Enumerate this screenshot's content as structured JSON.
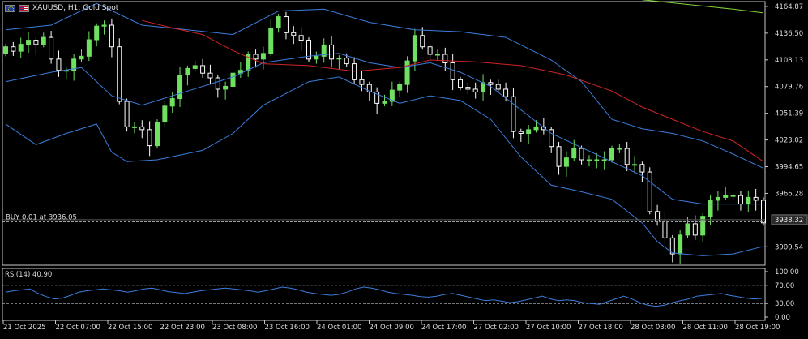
{
  "window": {
    "symbol_title": "XAUUSD, H1:  Gold Spot",
    "icons": [
      "eu-flag-icon",
      "us-flag-icon"
    ]
  },
  "trade": {
    "label": "BUY 0.01 at 3936.05",
    "price": 3936.05,
    "current_price_label": "3938.32",
    "current_price": 3938.32
  },
  "rsi": {
    "label": "RSI(14) 40.90",
    "period": 14,
    "value": 40.9,
    "levels": [
      "100.00",
      "70.00",
      "30.00",
      "0.00"
    ],
    "level_values": [
      100,
      70,
      30,
      0
    ]
  },
  "colors": {
    "background": "#000000",
    "candle_bull": "#6fe060",
    "candle_bear": "#ffffff",
    "bollinger": "#3c7ddc",
    "ma_red": "#d02424",
    "ma_green": "#7ed13a",
    "rsi_line": "#3c7ddc",
    "grid_text": "#dcdcdc"
  },
  "chart_data": {
    "type": "candlestick",
    "title": "XAUUSD, H1:  Gold Spot",
    "y_ticks": [
      "4164.87",
      "4136.50",
      "4108.13",
      "4079.76",
      "4051.39",
      "4023.02",
      "3994.65",
      "3966.28",
      "3909.54"
    ],
    "ylim": [
      3890,
      4170
    ],
    "x_ticks": [
      "21 Oct 2025",
      "22 Oct 07:00",
      "22 Oct 15:00",
      "22 Oct 23:00",
      "23 Oct 08:00",
      "23 Oct 16:00",
      "24 Oct 01:00",
      "24 Oct 09:00",
      "24 Oct 17:00",
      "27 Oct 02:00",
      "27 Oct 10:00",
      "27 Oct 18:00",
      "28 Oct 03:00",
      "28 Oct 11:00",
      "28 Oct 19:00"
    ],
    "close_path": [
      [
        0,
        4118
      ],
      [
        3,
        4125
      ],
      [
        5,
        4130
      ],
      [
        6,
        4105
      ],
      [
        8,
        4095
      ],
      [
        10,
        4115
      ],
      [
        12,
        4140
      ],
      [
        13,
        4148
      ],
      [
        14,
        4120
      ],
      [
        15,
        4060
      ],
      [
        16,
        4040
      ],
      [
        18,
        4030
      ],
      [
        19,
        4020
      ],
      [
        20,
        4040
      ],
      [
        22,
        4070
      ],
      [
        23,
        4090
      ],
      [
        24,
        4095
      ],
      [
        25,
        4105
      ],
      [
        26,
        4092
      ],
      [
        27,
        4085
      ],
      [
        28,
        4080
      ],
      [
        29,
        4078
      ],
      [
        30,
        4090
      ],
      [
        31,
        4100
      ],
      [
        32,
        4112
      ],
      [
        33,
        4105
      ],
      [
        34,
        4118
      ],
      [
        35,
        4140
      ],
      [
        36,
        4150
      ],
      [
        37,
        4140
      ],
      [
        38,
        4132
      ],
      [
        39,
        4125
      ],
      [
        40,
        4112
      ],
      [
        41,
        4110
      ],
      [
        42,
        4120
      ],
      [
        43,
        4112
      ],
      [
        44,
        4108
      ],
      [
        45,
        4100
      ],
      [
        46,
        4090
      ],
      [
        47,
        4080
      ],
      [
        48,
        4070
      ],
      [
        49,
        4065
      ],
      [
        50,
        4062
      ],
      [
        51,
        4072
      ],
      [
        52,
        4085
      ],
      [
        53,
        4105
      ],
      [
        54,
        4130
      ],
      [
        55,
        4125
      ],
      [
        56,
        4112
      ],
      [
        57,
        4110
      ],
      [
        58,
        4108
      ],
      [
        59,
        4085
      ],
      [
        60,
        4075
      ],
      [
        61,
        4080
      ],
      [
        62,
        4072
      ],
      [
        63,
        4080
      ],
      [
        64,
        4085
      ],
      [
        65,
        4075
      ],
      [
        66,
        4065
      ],
      [
        67,
        4035
      ],
      [
        68,
        4028
      ],
      [
        69,
        4030
      ],
      [
        70,
        4040
      ],
      [
        71,
        4032
      ],
      [
        72,
        4012
      ],
      [
        73,
        3998
      ],
      [
        74,
        4002
      ],
      [
        75,
        4010
      ],
      [
        76,
        4005
      ],
      [
        77,
        4000
      ],
      [
        78,
        3998
      ],
      [
        79,
        4005
      ],
      [
        80,
        4012
      ],
      [
        81,
        4010
      ],
      [
        82,
        4000
      ],
      [
        83,
        3995
      ],
      [
        84,
        3985
      ],
      [
        85,
        3950
      ],
      [
        86,
        3935
      ],
      [
        87,
        3915
      ],
      [
        88,
        3905
      ],
      [
        89,
        3920
      ],
      [
        90,
        3930
      ],
      [
        91,
        3925
      ],
      [
        92,
        3940
      ],
      [
        93,
        3955
      ],
      [
        94,
        3965
      ],
      [
        95,
        3962
      ],
      [
        96,
        3960
      ],
      [
        97,
        3958
      ],
      [
        98,
        3960
      ],
      [
        99,
        3955
      ],
      [
        100,
        3938
      ]
    ],
    "bollinger_upper_path": [
      [
        0,
        4140
      ],
      [
        6,
        4145
      ],
      [
        12,
        4168
      ],
      [
        18,
        4145
      ],
      [
        24,
        4140
      ],
      [
        30,
        4135
      ],
      [
        36,
        4160
      ],
      [
        42,
        4162
      ],
      [
        48,
        4148
      ],
      [
        54,
        4140
      ],
      [
        60,
        4138
      ],
      [
        66,
        4132
      ],
      [
        72,
        4108
      ],
      [
        76,
        4085
      ],
      [
        80,
        4045
      ],
      [
        84,
        4035
      ],
      [
        88,
        4030
      ],
      [
        92,
        4022
      ],
      [
        96,
        4008
      ],
      [
        100,
        3993
      ]
    ],
    "bollinger_middle_path": [
      [
        0,
        4085
      ],
      [
        6,
        4095
      ],
      [
        10,
        4100
      ],
      [
        14,
        4070
      ],
      [
        18,
        4060
      ],
      [
        24,
        4075
      ],
      [
        30,
        4090
      ],
      [
        34,
        4105
      ],
      [
        40,
        4112
      ],
      [
        44,
        4115
      ],
      [
        48,
        4105
      ],
      [
        52,
        4100
      ],
      [
        56,
        4105
      ],
      [
        60,
        4095
      ],
      [
        64,
        4080
      ],
      [
        68,
        4055
      ],
      [
        72,
        4030
      ],
      [
        76,
        4015
      ],
      [
        80,
        4000
      ],
      [
        84,
        3985
      ],
      [
        88,
        3960
      ],
      [
        92,
        3955
      ],
      [
        96,
        3955
      ],
      [
        100,
        3955
      ]
    ],
    "bollinger_lower_path": [
      [
        0,
        4040
      ],
      [
        4,
        4018
      ],
      [
        8,
        4030
      ],
      [
        12,
        4040
      ],
      [
        14,
        4010
      ],
      [
        16,
        4000
      ],
      [
        20,
        4002
      ],
      [
        26,
        4012
      ],
      [
        30,
        4030
      ],
      [
        34,
        4060
      ],
      [
        40,
        4085
      ],
      [
        44,
        4090
      ],
      [
        48,
        4075
      ],
      [
        52,
        4062
      ],
      [
        56,
        4070
      ],
      [
        60,
        4065
      ],
      [
        64,
        4045
      ],
      [
        68,
        4005
      ],
      [
        72,
        3975
      ],
      [
        76,
        3968
      ],
      [
        80,
        3960
      ],
      [
        84,
        3935
      ],
      [
        86,
        3915
      ],
      [
        88,
        3903
      ],
      [
        92,
        3900
      ],
      [
        96,
        3902
      ],
      [
        100,
        3910
      ]
    ],
    "ma_red_path": [
      [
        18,
        4150
      ],
      [
        22,
        4142
      ],
      [
        26,
        4135
      ],
      [
        30,
        4118
      ],
      [
        34,
        4104
      ],
      [
        40,
        4102
      ],
      [
        46,
        4096
      ],
      [
        52,
        4100
      ],
      [
        56,
        4108
      ],
      [
        62,
        4106
      ],
      [
        68,
        4102
      ],
      [
        74,
        4092
      ],
      [
        80,
        4075
      ],
      [
        84,
        4058
      ],
      [
        88,
        4045
      ],
      [
        92,
        4032
      ],
      [
        96,
        4022
      ],
      [
        100,
        4000
      ]
    ],
    "ma_green_path": [
      [
        84,
        4172
      ],
      [
        90,
        4167
      ],
      [
        96,
        4162
      ],
      [
        100,
        4158
      ]
    ],
    "rsi_series": [
      55,
      58,
      60,
      62,
      52,
      45,
      40,
      42,
      48,
      55,
      58,
      60,
      62,
      60,
      58,
      55,
      58,
      62,
      64,
      60,
      56,
      54,
      52,
      55,
      58,
      60,
      62,
      64,
      62,
      60,
      58,
      55,
      58,
      62,
      66,
      64,
      60,
      55,
      52,
      50,
      48,
      50,
      55,
      62,
      66,
      64,
      60,
      55,
      52,
      50,
      48,
      45,
      44,
      46,
      50,
      52,
      48,
      44,
      40,
      36,
      38,
      35,
      32,
      34,
      38,
      42,
      46,
      40,
      36,
      38,
      36,
      32,
      30,
      28,
      34,
      40,
      46,
      40,
      32,
      26,
      24,
      26,
      32,
      36,
      40,
      46,
      48,
      50,
      52,
      48,
      45,
      42,
      40,
      41
    ]
  }
}
